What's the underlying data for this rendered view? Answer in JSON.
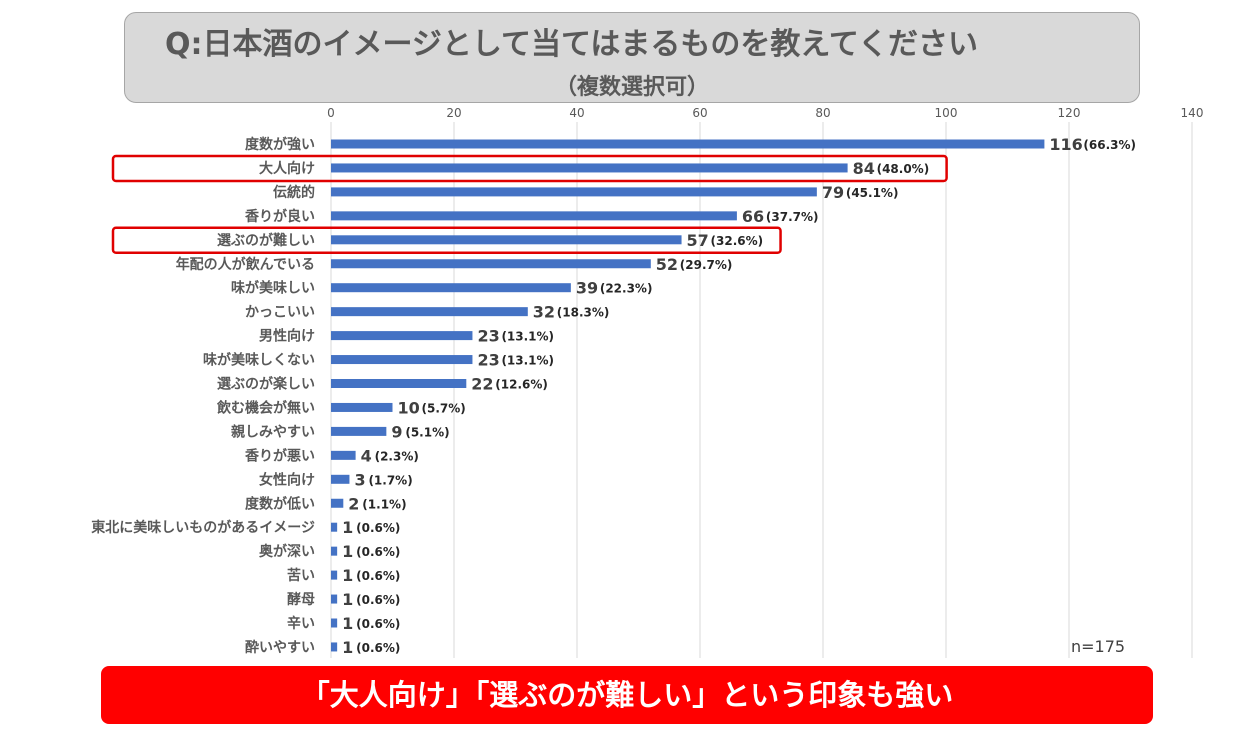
{
  "title": {
    "main": "Q:日本酒のイメージとして当てはまるものを教えてください",
    "sub": "（複数選択可）"
  },
  "chart_data": {
    "type": "bar",
    "orientation": "horizontal",
    "title": "Q:日本酒のイメージとして当てはまるものを教えてください（複数選択可）",
    "xlim": [
      0,
      140
    ],
    "ticks": [
      0,
      20,
      40,
      60,
      80,
      100,
      120,
      140
    ],
    "grid": true,
    "bar_color": "#4472c4",
    "highlight_color": "#e00000",
    "categories": [
      "度数が強い",
      "大人向け",
      "伝統的",
      "香りが良い",
      "選ぶのが難しい",
      "年配の人が飲んでいる",
      "味が美味しい",
      "かっこいい",
      "男性向け",
      "味が美味しくない",
      "選ぶのが楽しい",
      "飲む機会が無い",
      "親しみやすい",
      "香りが悪い",
      "女性向け",
      "度数が低い",
      "東北に美味しいものがあるイメージ",
      "奥が深い",
      "苦い",
      "酵母",
      "辛い",
      "酔いやすい"
    ],
    "values": [
      116,
      84,
      79,
      66,
      57,
      52,
      39,
      32,
      23,
      23,
      22,
      10,
      9,
      4,
      3,
      2,
      1,
      1,
      1,
      1,
      1,
      1
    ],
    "percent_labels": [
      "(66.3%)",
      "(48.0%)",
      "(45.1%)",
      "(37.7%)",
      "(32.6%)",
      "(29.7%)",
      "(22.3%)",
      "(18.3%)",
      "(13.1%)",
      "(13.1%)",
      "(12.6%)",
      "(5.7%)",
      "(5.1%)",
      "(2.3%)",
      "(1.7%)",
      "(1.1%)",
      "(0.6%)",
      "(0.6%)",
      "(0.6%)",
      "(0.6%)",
      "(0.6%)",
      "(0.6%)"
    ],
    "highlighted": [
      "大人向け",
      "選ぶのが難しい"
    ],
    "annotation": "n=175"
  },
  "banner": "「大人向け」「選ぶのが難しい」という印象も強い"
}
